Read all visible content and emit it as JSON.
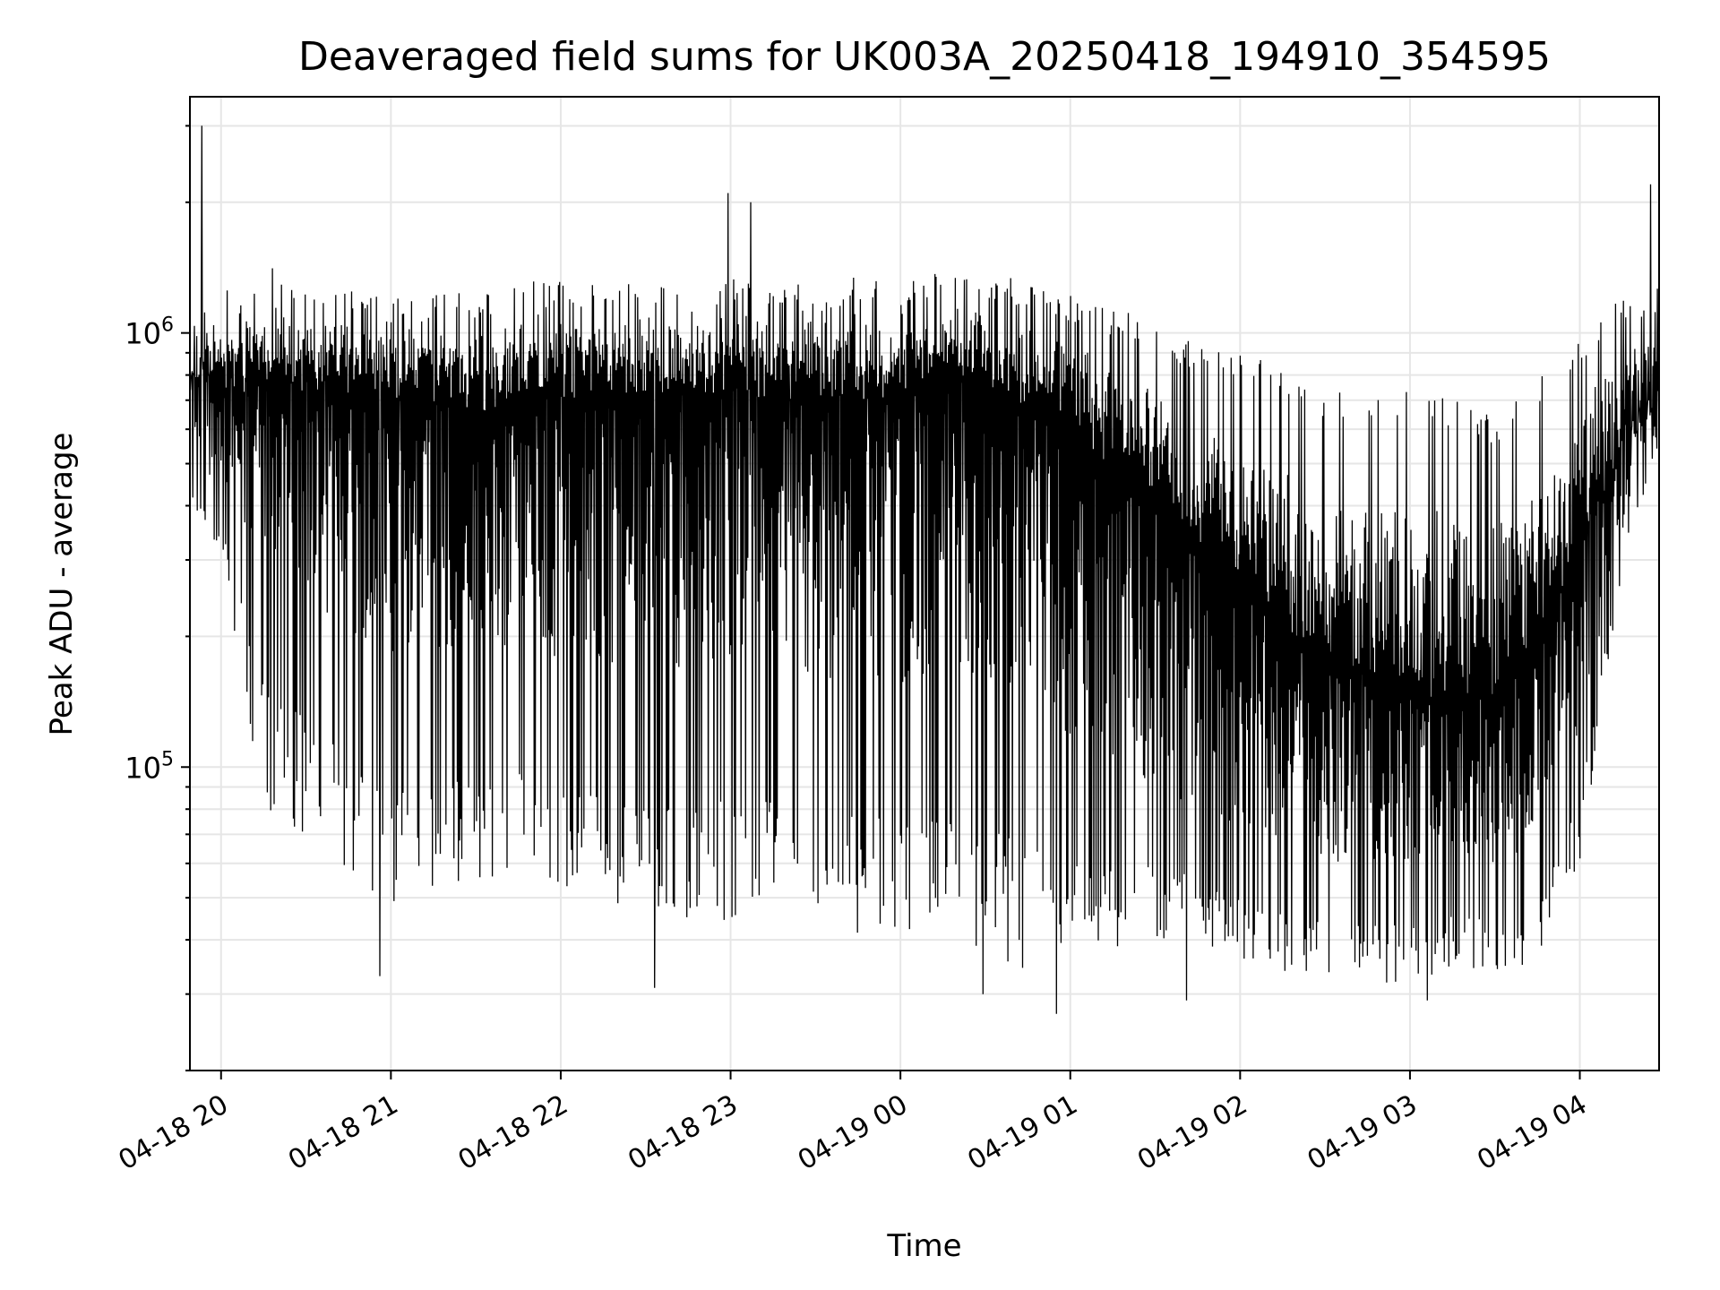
{
  "chart_data": {
    "type": "line",
    "title": "Deaveraged field sums for UK003A_20250418_194910_354595",
    "xlabel": "Time",
    "ylabel": "Peak ADU - average",
    "y_scale": "log",
    "ylim": [
      20000,
      3500000
    ],
    "xlim": [
      "2025-04-18 19:49",
      "2025-04-19 04:28"
    ],
    "x_ticks": [
      {
        "time": "2025-04-18 20:00",
        "label": "04-18 20"
      },
      {
        "time": "2025-04-18 21:00",
        "label": "04-18 21"
      },
      {
        "time": "2025-04-18 22:00",
        "label": "04-18 22"
      },
      {
        "time": "2025-04-18 23:00",
        "label": "04-18 23"
      },
      {
        "time": "2025-04-19 00:00",
        "label": "04-19 00"
      },
      {
        "time": "2025-04-19 01:00",
        "label": "04-19 01"
      },
      {
        "time": "2025-04-19 02:00",
        "label": "04-19 02"
      },
      {
        "time": "2025-04-19 03:00",
        "label": "04-19 03"
      },
      {
        "time": "2025-04-19 04:00",
        "label": "04-19 04"
      }
    ],
    "y_ticks": [
      {
        "value": 1000000,
        "base": "10",
        "exp": "6"
      },
      {
        "value": 100000,
        "base": "10",
        "exp": "5"
      }
    ],
    "grid": true,
    "series": [
      {
        "color": "#000000",
        "x": [
          "2025-04-18 19:49",
          "2025-04-18 20:00",
          "2025-04-18 20:15",
          "2025-04-18 20:30",
          "2025-04-18 20:45",
          "2025-04-18 21:00",
          "2025-04-18 21:15",
          "2025-04-18 21:30",
          "2025-04-18 21:45",
          "2025-04-18 22:00",
          "2025-04-18 22:15",
          "2025-04-18 22:30",
          "2025-04-18 22:45",
          "2025-04-18 23:00",
          "2025-04-18 23:15",
          "2025-04-18 23:30",
          "2025-04-18 23:45",
          "2025-04-19 00:00",
          "2025-04-19 00:15",
          "2025-04-19 00:30",
          "2025-04-19 00:45",
          "2025-04-19 01:00",
          "2025-04-19 01:15",
          "2025-04-19 01:30",
          "2025-04-19 01:45",
          "2025-04-19 02:00",
          "2025-04-19 02:15",
          "2025-04-19 02:30",
          "2025-04-19 02:45",
          "2025-04-19 03:00",
          "2025-04-19 03:15",
          "2025-04-19 03:30",
          "2025-04-19 03:45",
          "2025-04-19 04:00",
          "2025-04-19 04:15",
          "2025-04-19 04:28"
        ],
        "upper": [
          1100000,
          1250000,
          1450000,
          1350000,
          1250000,
          1200000,
          1250000,
          1250000,
          1300000,
          1350000,
          1300000,
          1300000,
          1300000,
          1400000,
          1350000,
          1300000,
          1350000,
          1350000,
          1450000,
          1350000,
          1350000,
          1250000,
          1150000,
          1050000,
          950000,
          900000,
          850000,
          750000,
          700000,
          750000,
          700000,
          650000,
          800000,
          1000000,
          1250000,
          1300000
        ],
        "core_high": [
          950000,
          850000,
          900000,
          900000,
          900000,
          850000,
          850000,
          800000,
          850000,
          850000,
          850000,
          850000,
          850000,
          900000,
          850000,
          850000,
          850000,
          850000,
          950000,
          900000,
          800000,
          700000,
          600000,
          450000,
          350000,
          300000,
          250000,
          200000,
          180000,
          170000,
          160000,
          160000,
          200000,
          400000,
          650000,
          850000
        ],
        "core_low": [
          500000,
          450000,
          300000,
          250000,
          200000,
          180000,
          170000,
          170000,
          170000,
          170000,
          170000,
          170000,
          170000,
          170000,
          170000,
          160000,
          150000,
          150000,
          160000,
          150000,
          130000,
          110000,
          100000,
          90000,
          80000,
          70000,
          65000,
          60000,
          60000,
          60000,
          65000,
          60000,
          65000,
          120000,
          350000,
          600000
        ],
        "lower": [
          400000,
          300000,
          80000,
          70000,
          55000,
          45000,
          50000,
          55000,
          55000,
          50000,
          45000,
          45000,
          45000,
          42000,
          42000,
          40000,
          40000,
          40000,
          38000,
          36000,
          33000,
          36000,
          38000,
          38000,
          40000,
          36000,
          34000,
          32000,
          31000,
          32000,
          33000,
          33000,
          36000,
          60000,
          280000,
          550000
        ],
        "spikes": [
          {
            "time": "2025-04-18 19:53",
            "value": 3000000
          },
          {
            "time": "2025-04-18 22:59",
            "value": 2100000
          },
          {
            "time": "2025-04-18 23:07",
            "value": 2000000
          },
          {
            "time": "2025-04-19 04:25",
            "value": 2200000
          },
          {
            "time": "2025-04-18 20:56",
            "value": 33000
          },
          {
            "time": "2025-04-18 22:33",
            "value": 31000
          },
          {
            "time": "2025-04-19 00:29",
            "value": 30000
          },
          {
            "time": "2025-04-19 00:55",
            "value": 27000
          },
          {
            "time": "2025-04-19 01:41",
            "value": 29000
          },
          {
            "time": "2025-04-19 03:06",
            "value": 29000
          }
        ]
      }
    ]
  }
}
